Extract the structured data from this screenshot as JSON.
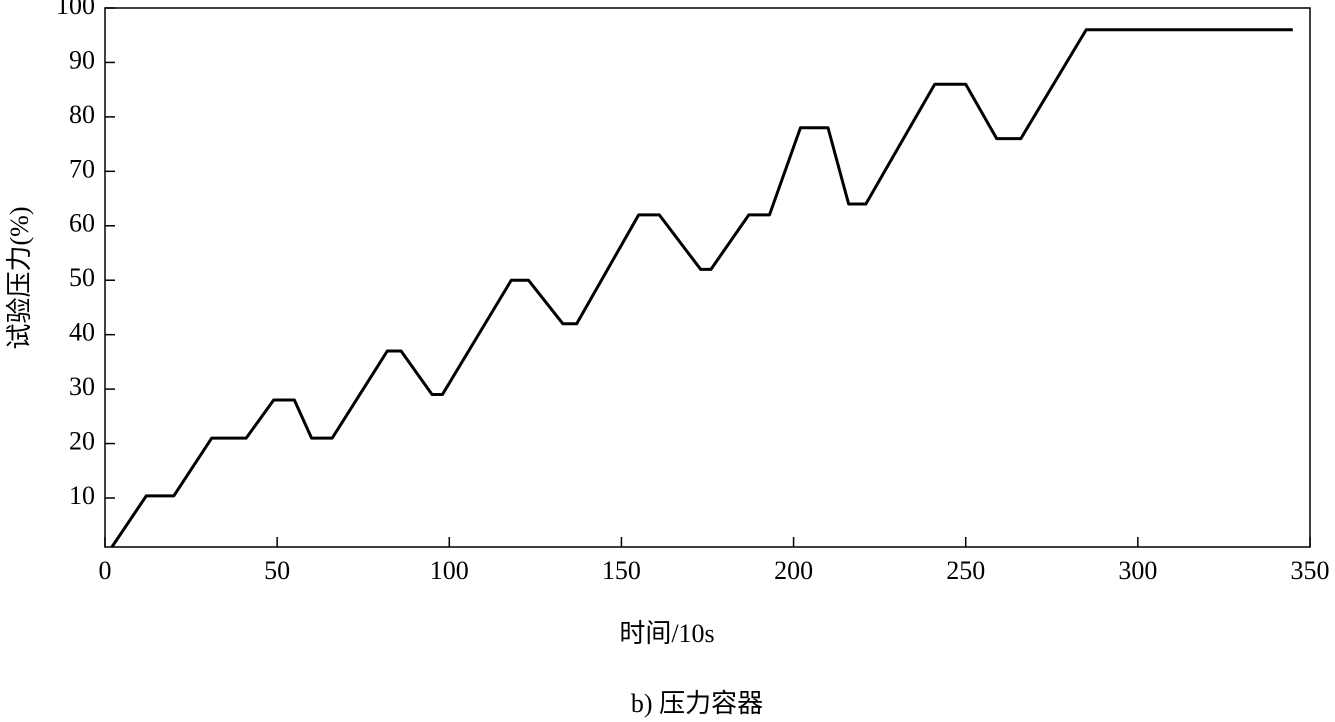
{
  "chart_data": {
    "type": "line",
    "xlabel": "时间/10s",
    "ylabel": "试验压力(%)",
    "caption": "b) 压力容器",
    "x": [
      2,
      12,
      20,
      31,
      41,
      49,
      55,
      60,
      66,
      82,
      86,
      95,
      98,
      118,
      123,
      133,
      137,
      155,
      161,
      173,
      176,
      187,
      193,
      202,
      210,
      216,
      221,
      241,
      250,
      259,
      266,
      285,
      345
    ],
    "values": [
      1,
      10.4,
      10.4,
      21,
      21,
      28,
      28,
      21,
      21,
      37,
      37,
      29,
      29,
      50,
      50,
      42,
      42,
      62,
      62,
      52,
      52,
      62,
      62,
      78,
      78,
      64,
      64,
      86,
      86,
      76,
      76,
      96,
      96
    ],
    "color": "#000000",
    "xlim": [
      0,
      350
    ],
    "xticks": [
      0,
      50,
      100,
      150,
      200,
      250,
      300,
      350
    ],
    "ylim": [
      1,
      100
    ],
    "yticks": [
      10,
      20,
      30,
      40,
      50,
      60,
      70,
      80,
      90,
      100
    ]
  }
}
